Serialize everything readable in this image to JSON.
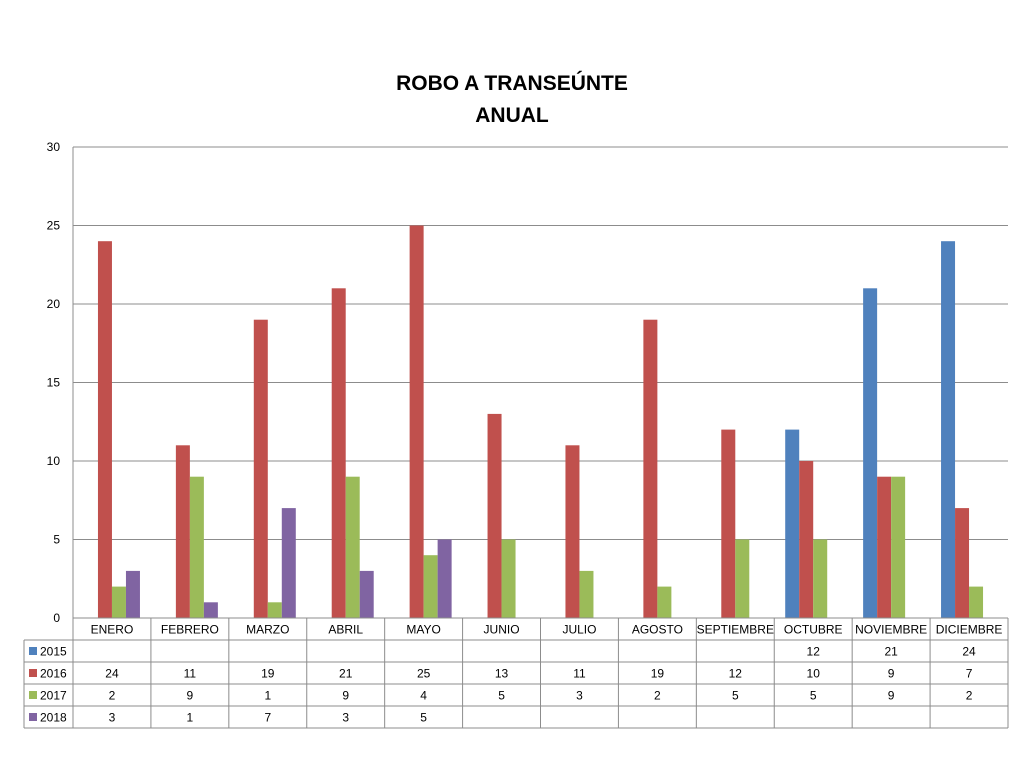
{
  "chart_data": {
    "type": "bar",
    "title_line1": "ROBO A TRANSEÚNTE",
    "title_line2": "ANUAL",
    "categories": [
      "ENERO",
      "FEBRERO",
      "MARZO",
      "ABRIL",
      "MAYO",
      "JUNIO",
      "JULIO",
      "AGOSTO",
      "SEPTIEMBRE",
      "OCTUBRE",
      "NOVIEMBRE",
      "DICIEMBRE"
    ],
    "series": [
      {
        "name": "2015",
        "color": "#4f81bd",
        "values": [
          null,
          null,
          null,
          null,
          null,
          null,
          null,
          null,
          null,
          12,
          21,
          24
        ]
      },
      {
        "name": "2016",
        "color": "#c0504d",
        "values": [
          24,
          11,
          19,
          21,
          25,
          13,
          11,
          19,
          12,
          10,
          9,
          7
        ]
      },
      {
        "name": "2017",
        "color": "#9bbb59",
        "values": [
          2,
          9,
          1,
          9,
          4,
          5,
          3,
          2,
          5,
          5,
          9,
          2
        ]
      },
      {
        "name": "2018",
        "color": "#8064a2",
        "values": [
          3,
          1,
          7,
          3,
          5,
          null,
          null,
          null,
          null,
          null,
          null,
          null
        ]
      }
    ],
    "ylim": [
      0,
      30
    ],
    "yticks": [
      0,
      5,
      10,
      15,
      20,
      25,
      30
    ],
    "grid": true,
    "legend": "data-table"
  }
}
